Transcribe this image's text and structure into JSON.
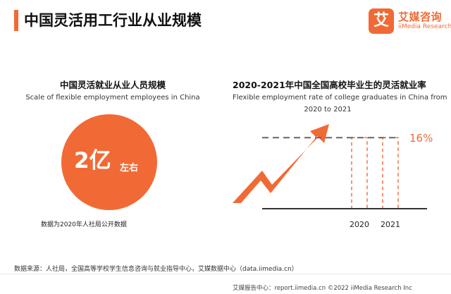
{
  "header": {
    "title": "中国灵活用工行业从业规模"
  },
  "logo": {
    "mark": "艾",
    "name_cn": "艾媒咨询",
    "name_en": "iiMedia Research"
  },
  "left_panel": {
    "title": "中国灵活就业从业人员规模",
    "subtitle": "Scale of flexible employment employees in China",
    "value": "2亿",
    "unit": "左右",
    "note": "数据为2020年人社局公开数据"
  },
  "right_panel": {
    "title": "2020-2021年中国全国高校毕业生的灵活就业率",
    "subtitle_line1": "Flexible employment rate of college graduates in China from",
    "subtitle_line2": "2020 to 2021"
  },
  "chart_data": {
    "type": "bar",
    "title": "2020-2021年中国全国高校毕业生的灵活就业率",
    "categories": [
      "2020",
      "2021"
    ],
    "values": [
      16,
      16
    ],
    "reference_line": {
      "value": 16,
      "label": "16%"
    },
    "ylim": [
      0,
      20
    ],
    "xlabel": "",
    "ylabel": "",
    "colors": {
      "accent": "#f16a35",
      "reference": "#666666",
      "axis": "#333333"
    }
  },
  "footer": {
    "source": "数据来源：人社局，全国高等学校学生信息咨询与就业指导中心，艾媒数据中心（data.iimedia.cn）",
    "right": "艾媒报告中心：report.iimedia.cn   ©2022  iiMedia Research  Inc"
  }
}
